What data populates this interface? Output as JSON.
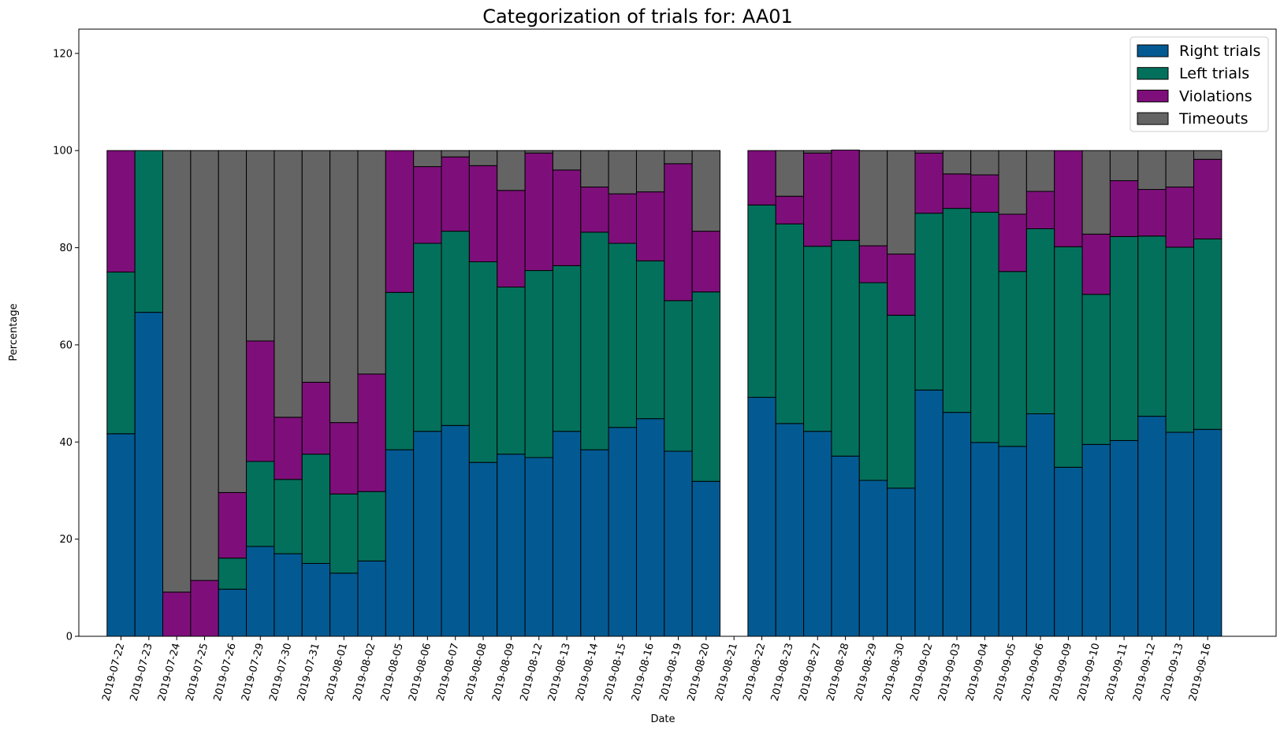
{
  "chart_data": {
    "type": "bar",
    "stacked": true,
    "title": "Categorization of trials for: AA01",
    "xlabel": "Date",
    "ylabel": "Percentage",
    "ylim": [
      0,
      125
    ],
    "yticks": [
      0,
      20,
      40,
      60,
      80,
      100,
      120
    ],
    "grid": false,
    "legend_position": "top-right",
    "categories": [
      "2019-07-22",
      "2019-07-23",
      "2019-07-24",
      "2019-07-25",
      "2019-07-26",
      "2019-07-29",
      "2019-07-30",
      "2019-07-31",
      "2019-08-01",
      "2019-08-02",
      "2019-08-05",
      "2019-08-06",
      "2019-08-07",
      "2019-08-08",
      "2019-08-09",
      "2019-08-12",
      "2019-08-13",
      "2019-08-14",
      "2019-08-15",
      "2019-08-16",
      "2019-08-19",
      "2019-08-20",
      "2019-08-21",
      "2019-08-22",
      "2019-08-23",
      "2019-08-27",
      "2019-08-28",
      "2019-08-29",
      "2019-08-30",
      "2019-09-02",
      "2019-09-03",
      "2019-09-04",
      "2019-09-05",
      "2019-09-06",
      "2019-09-09",
      "2019-09-10",
      "2019-09-11",
      "2019-09-12",
      "2019-09-13",
      "2019-09-16"
    ],
    "series": [
      {
        "name": "Right trials",
        "color": "#035a92",
        "values": [
          41.7,
          66.7,
          0,
          0,
          9.7,
          18.5,
          17.0,
          15.0,
          13.0,
          15.5,
          38.4,
          42.2,
          43.4,
          35.8,
          37.5,
          36.8,
          42.2,
          38.4,
          43.0,
          44.8,
          38.1,
          31.9,
          null,
          49.2,
          43.8,
          42.2,
          37.1,
          32.1,
          30.5,
          50.7,
          46.1,
          39.9,
          39.1,
          45.8,
          34.8,
          39.5,
          40.3,
          45.3,
          42.0,
          42.6
        ]
      },
      {
        "name": "Left trials",
        "color": "#03705c",
        "values": [
          33.3,
          33.3,
          0,
          0,
          6.4,
          17.5,
          15.3,
          22.5,
          16.3,
          14.3,
          32.4,
          38.7,
          40.0,
          41.3,
          34.4,
          38.5,
          34.1,
          44.8,
          37.9,
          32.5,
          31.0,
          39.0,
          null,
          39.6,
          41.1,
          38.1,
          44.4,
          40.7,
          35.6,
          36.4,
          42.0,
          47.4,
          36.0,
          38.1,
          45.4,
          30.9,
          42.0,
          37.1,
          38.1,
          39.2
        ]
      },
      {
        "name": "Violations",
        "color": "#7e0f7a",
        "values": [
          25.0,
          0,
          9.1,
          11.5,
          13.5,
          24.8,
          12.8,
          14.8,
          14.7,
          24.2,
          29.2,
          15.8,
          15.3,
          19.8,
          19.9,
          24.2,
          19.7,
          9.3,
          10.2,
          14.2,
          28.2,
          12.5,
          null,
          11.2,
          5.7,
          19.2,
          18.6,
          7.6,
          12.6,
          12.4,
          7.1,
          7.7,
          11.8,
          7.7,
          19.8,
          12.4,
          11.5,
          9.6,
          12.4,
          16.4
        ]
      },
      {
        "name": "Timeouts",
        "color": "#646464",
        "values": [
          0,
          0,
          90.9,
          88.5,
          70.4,
          39.2,
          54.9,
          47.7,
          56.0,
          46.0,
          0,
          3.3,
          1.3,
          3.1,
          8.2,
          0.5,
          4.0,
          7.5,
          8.9,
          8.5,
          2.7,
          16.6,
          null,
          0,
          9.4,
          0.5,
          0,
          19.6,
          21.3,
          0.5,
          4.8,
          5.0,
          13.1,
          8.4,
          0,
          17.2,
          6.2,
          8.0,
          7.5,
          1.8
        ]
      }
    ]
  }
}
